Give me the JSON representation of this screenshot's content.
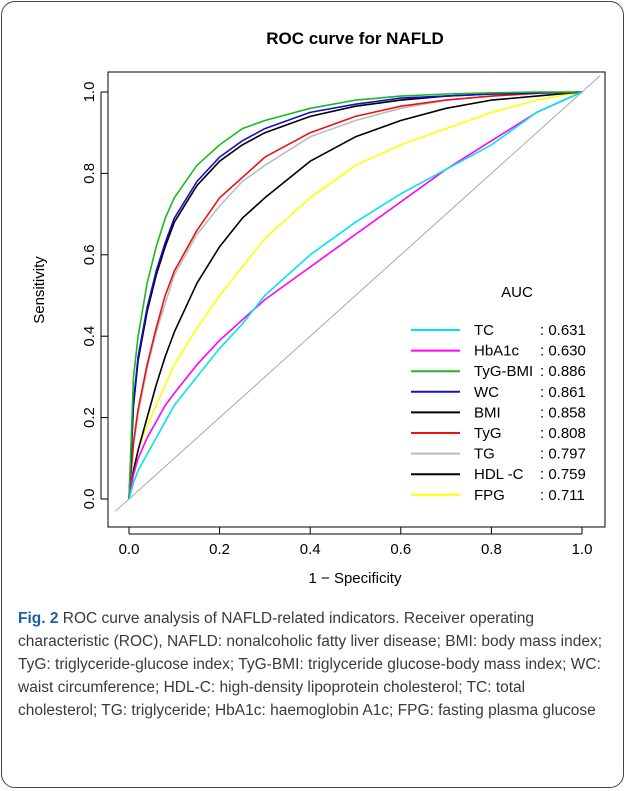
{
  "caption": {
    "label": "Fig. 2",
    "text": " ROC curve analysis of NAFLD-related indicators. Receiver operating characteristic (ROC), NAFLD: nonalcoholic fatty liver disease; BMI: body mass index; TyG: triglyceride-glucose index; TyG-BMI: triglyceride glucose-body mass index; WC: waist circumference; HDL-C: high-density lipoprotein cholesterol; TC: total cholesterol; TG: triglyceride; HbA1c: haemoglobin A1c; FPG: fasting plasma glucose"
  },
  "chart_data": {
    "type": "line",
    "title": "ROC curve for NAFLD",
    "xlabel": "1 − Specificity",
    "ylabel": "Sensitivity",
    "xlim": [
      0,
      1
    ],
    "ylim": [
      0,
      1
    ],
    "x_ticks": [
      "0.0",
      "0.2",
      "0.4",
      "0.6",
      "0.8",
      "1.0"
    ],
    "y_ticks": [
      "0.0",
      "0.2",
      "0.4",
      "0.6",
      "0.8",
      "1.0"
    ],
    "grid": false,
    "legend": {
      "title": "AUC",
      "placement": "bottom-right"
    },
    "reference_line": {
      "from": [
        0,
        0
      ],
      "to": [
        1,
        1
      ],
      "color": "#aaaaaa"
    },
    "x": [
      0,
      0.01,
      0.02,
      0.04,
      0.06,
      0.08,
      0.1,
      0.15,
      0.2,
      0.25,
      0.3,
      0.4,
      0.5,
      0.6,
      0.7,
      0.8,
      0.9,
      1.0
    ],
    "series": [
      {
        "name": "TC",
        "auc_label": ": 0.631",
        "color": "#00e5ee",
        "values": [
          0,
          0.04,
          0.07,
          0.11,
          0.15,
          0.19,
          0.23,
          0.3,
          0.37,
          0.43,
          0.5,
          0.6,
          0.68,
          0.75,
          0.81,
          0.87,
          0.95,
          1.0
        ]
      },
      {
        "name": "HbA1c",
        "auc_label": ": 0.630",
        "color": "#ff00ff",
        "values": [
          0,
          0.06,
          0.1,
          0.15,
          0.19,
          0.23,
          0.26,
          0.33,
          0.39,
          0.44,
          0.49,
          0.57,
          0.65,
          0.73,
          0.81,
          0.88,
          0.95,
          1.0
        ]
      },
      {
        "name": "TyG-BMI",
        "auc_label": ": 0.886",
        "color": "#1fb71f",
        "values": [
          0,
          0.3,
          0.4,
          0.53,
          0.62,
          0.69,
          0.74,
          0.82,
          0.87,
          0.91,
          0.93,
          0.96,
          0.98,
          0.99,
          0.995,
          0.998,
          1.0,
          1.0
        ]
      },
      {
        "name": "WC",
        "auc_label": ": 0.861",
        "color": "#1010d0",
        "values": [
          0,
          0.24,
          0.35,
          0.47,
          0.56,
          0.63,
          0.69,
          0.78,
          0.84,
          0.88,
          0.91,
          0.95,
          0.97,
          0.985,
          0.99,
          0.995,
          0.998,
          1.0
        ]
      },
      {
        "name": "BMI",
        "auc_label": ": 0.858",
        "color": "#000000",
        "values": [
          0,
          0.23,
          0.34,
          0.46,
          0.55,
          0.62,
          0.68,
          0.77,
          0.83,
          0.87,
          0.9,
          0.94,
          0.965,
          0.98,
          0.99,
          0.995,
          0.998,
          1.0
        ]
      },
      {
        "name": "TyG",
        "auc_label": ": 0.808",
        "color": "#ee1111",
        "values": [
          0,
          0.14,
          0.22,
          0.33,
          0.42,
          0.5,
          0.56,
          0.66,
          0.74,
          0.79,
          0.84,
          0.9,
          0.94,
          0.965,
          0.98,
          0.99,
          0.997,
          1.0
        ]
      },
      {
        "name": "TG",
        "auc_label": ": 0.797",
        "color": "#bdbdbd",
        "values": [
          0,
          0.13,
          0.21,
          0.32,
          0.41,
          0.48,
          0.55,
          0.65,
          0.72,
          0.78,
          0.82,
          0.89,
          0.93,
          0.96,
          0.98,
          0.99,
          0.996,
          1.0
        ]
      },
      {
        "name": "HDL -C",
        "auc_label": ": 0.759",
        "color": "#000000",
        "values": [
          0,
          0.07,
          0.12,
          0.2,
          0.28,
          0.35,
          0.41,
          0.53,
          0.62,
          0.69,
          0.74,
          0.83,
          0.89,
          0.93,
          0.96,
          0.98,
          0.99,
          1.0
        ]
      },
      {
        "name": "FPG",
        "auc_label": ": 0.711",
        "color": "#ffff00",
        "values": [
          0,
          0.07,
          0.12,
          0.18,
          0.23,
          0.28,
          0.33,
          0.42,
          0.5,
          0.57,
          0.64,
          0.74,
          0.82,
          0.87,
          0.91,
          0.95,
          0.98,
          1.0
        ]
      }
    ]
  }
}
